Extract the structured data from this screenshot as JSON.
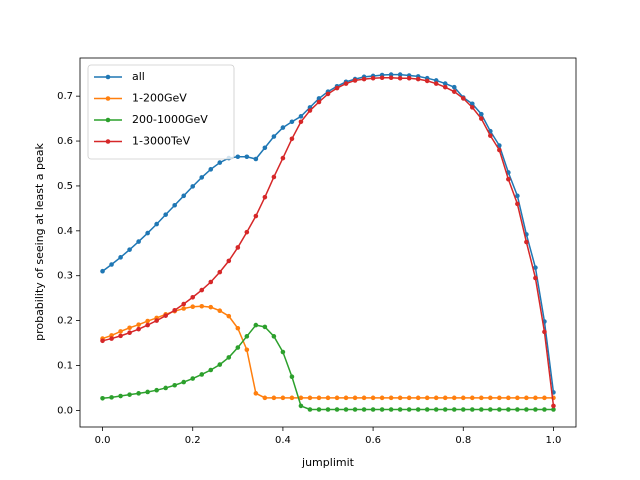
{
  "chart_data": {
    "type": "line",
    "xlabel": "jumplimit",
    "ylabel": "probability of seeing at least a peak",
    "x": [
      0.0,
      0.02,
      0.04,
      0.06,
      0.08,
      0.1,
      0.12,
      0.14,
      0.16,
      0.18,
      0.2,
      0.22,
      0.24,
      0.26,
      0.28,
      0.3,
      0.32,
      0.34,
      0.36,
      0.38,
      0.4,
      0.42,
      0.44,
      0.46,
      0.48,
      0.5,
      0.52,
      0.54,
      0.56,
      0.58,
      0.6,
      0.62,
      0.64,
      0.66,
      0.68,
      0.7,
      0.72,
      0.74,
      0.76,
      0.78,
      0.8,
      0.82,
      0.84,
      0.86,
      0.88,
      0.9,
      0.92,
      0.94,
      0.96,
      0.98,
      1.0
    ],
    "series": [
      {
        "name": "all",
        "color": "#1f77b4",
        "values": [
          0.31,
          0.325,
          0.341,
          0.358,
          0.376,
          0.395,
          0.415,
          0.436,
          0.457,
          0.478,
          0.499,
          0.519,
          0.537,
          0.552,
          0.562,
          0.565,
          0.565,
          0.56,
          0.585,
          0.61,
          0.63,
          0.643,
          0.655,
          0.675,
          0.695,
          0.71,
          0.722,
          0.732,
          0.738,
          0.743,
          0.745,
          0.747,
          0.748,
          0.748,
          0.746,
          0.744,
          0.74,
          0.735,
          0.728,
          0.72,
          0.697,
          0.683,
          0.66,
          0.622,
          0.59,
          0.53,
          0.478,
          0.392,
          0.318,
          0.198,
          0.04
        ]
      },
      {
        "name": "1-200GeV",
        "color": "#ff7f0e",
        "values": [
          0.16,
          0.167,
          0.176,
          0.184,
          0.191,
          0.199,
          0.206,
          0.214,
          0.221,
          0.227,
          0.231,
          0.232,
          0.23,
          0.222,
          0.21,
          0.183,
          0.135,
          0.038,
          0.028,
          0.028,
          0.028,
          0.028,
          0.028,
          0.028,
          0.028,
          0.028,
          0.028,
          0.028,
          0.028,
          0.028,
          0.028,
          0.028,
          0.028,
          0.028,
          0.028,
          0.028,
          0.028,
          0.028,
          0.028,
          0.028,
          0.028,
          0.028,
          0.028,
          0.028,
          0.028,
          0.028,
          0.028,
          0.028,
          0.028,
          0.028,
          0.028
        ]
      },
      {
        "name": "200-1000GeV",
        "color": "#2ca02c",
        "values": [
          0.027,
          0.029,
          0.032,
          0.035,
          0.038,
          0.041,
          0.045,
          0.05,
          0.056,
          0.063,
          0.071,
          0.08,
          0.09,
          0.102,
          0.118,
          0.14,
          0.165,
          0.19,
          0.186,
          0.165,
          0.13,
          0.075,
          0.01,
          0.002,
          0.002,
          0.002,
          0.002,
          0.002,
          0.002,
          0.002,
          0.002,
          0.002,
          0.002,
          0.002,
          0.002,
          0.002,
          0.002,
          0.002,
          0.002,
          0.002,
          0.002,
          0.002,
          0.002,
          0.002,
          0.002,
          0.002,
          0.002,
          0.002,
          0.002,
          0.002,
          0.002
        ]
      },
      {
        "name": "1-3000TeV",
        "color": "#d62728",
        "values": [
          0.155,
          0.16,
          0.166,
          0.173,
          0.181,
          0.19,
          0.2,
          0.211,
          0.223,
          0.237,
          0.252,
          0.268,
          0.286,
          0.308,
          0.333,
          0.363,
          0.397,
          0.433,
          0.475,
          0.52,
          0.562,
          0.605,
          0.643,
          0.668,
          0.687,
          0.705,
          0.718,
          0.728,
          0.735,
          0.738,
          0.74,
          0.741,
          0.741,
          0.74,
          0.74,
          0.738,
          0.734,
          0.728,
          0.72,
          0.71,
          0.695,
          0.675,
          0.65,
          0.612,
          0.58,
          0.515,
          0.46,
          0.375,
          0.295,
          0.175,
          0.01
        ]
      }
    ],
    "xlim": [
      -0.05,
      1.05
    ],
    "ylim": [
      -0.037,
      0.785
    ],
    "xticks": [
      {
        "value": 0,
        "label": "0.0"
      },
      0.2,
      0.4,
      0.6,
      0.8,
      {
        "value": 1,
        "label": "1.0"
      }
    ],
    "yticks": [
      {
        "value": 0,
        "label": "0.0"
      },
      0.1,
      0.2,
      0.3,
      0.4,
      0.5,
      0.6,
      0.7
    ],
    "legend": "upper left"
  }
}
